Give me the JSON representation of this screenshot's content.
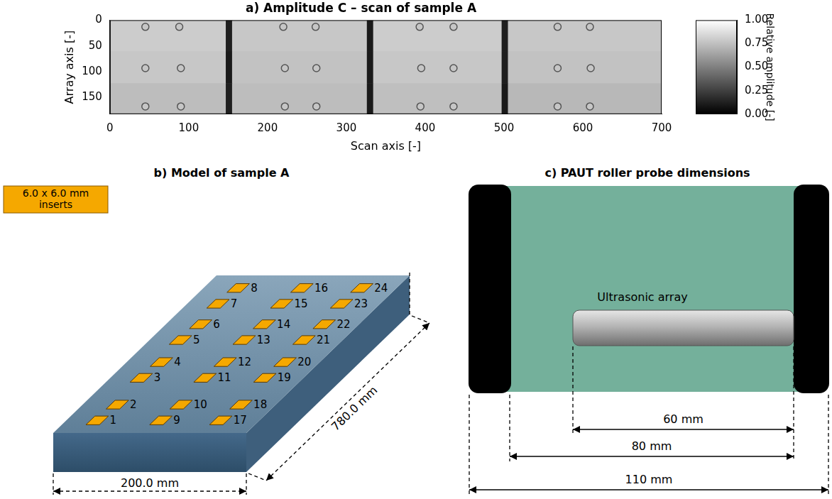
{
  "chart_data": {
    "type": "heatmap",
    "title": "a) Amplitude C – scan of sample A",
    "x_label": "Scan axis [-]",
    "y_label": "Array axis [-]",
    "xlim": [
      0,
      700
    ],
    "xticks": [
      0,
      100,
      200,
      300,
      400,
      500,
      600,
      700
    ],
    "ylim": [
      182,
      0
    ],
    "yticks": [
      0,
      50,
      100,
      150
    ],
    "grid": false,
    "cells": {
      "x_edges": [
        0,
        147,
        155,
        326,
        334,
        497,
        505,
        700
      ],
      "y_edges": [
        0,
        60,
        122,
        182
      ],
      "values": [
        [
          0.8,
          0.12,
          0.78,
          0.1,
          0.8,
          0.12,
          0.78
        ],
        [
          0.78,
          0.1,
          0.76,
          0.1,
          0.78,
          0.12,
          0.76
        ],
        [
          0.74,
          0.12,
          0.74,
          0.1,
          0.75,
          0.1,
          0.72
        ]
      ]
    },
    "inserts": {
      "marker": "circle",
      "x": [
        45,
        88,
        220,
        261,
        393,
        436,
        568,
        609,
        45,
        90,
        222,
        262,
        395,
        436,
        568,
        610,
        45,
        90,
        222,
        262,
        394,
        436,
        568,
        609
      ],
      "y": [
        13,
        13,
        13,
        13,
        13,
        13,
        13,
        13,
        93,
        93,
        93,
        93,
        93,
        93,
        93,
        93,
        167,
        167,
        167,
        167,
        167,
        167,
        167,
        167
      ]
    },
    "colorbar": {
      "label": "Relative amplitude [-]",
      "range": [
        0,
        1
      ],
      "ticks": [
        {
          "value": 0,
          "label": "0.00"
        },
        {
          "value": 0.25,
          "label": "0.25"
        },
        {
          "value": 0.5,
          "label": "0.50"
        },
        {
          "value": 0.75,
          "label": "0.75"
        },
        {
          "value": 1,
          "label": "1.00"
        }
      ]
    }
  },
  "model": {
    "title": "b) Model of sample A",
    "legend_box": [
      "6.0 x 6.0 mm",
      "inserts"
    ],
    "width_label": "200.0 mm",
    "length_label": "780.0 mm",
    "inserts": [
      1,
      2,
      3,
      4,
      5,
      6,
      7,
      8,
      9,
      10,
      11,
      12,
      13,
      14,
      15,
      16,
      17,
      18,
      19,
      20,
      21,
      22,
      23,
      24
    ]
  },
  "probe": {
    "title": "c) PAUT roller probe dimensions",
    "array_label": "Ultrasonic array",
    "dimensions": [
      "60 mm",
      "80 mm",
      "110 mm"
    ]
  }
}
